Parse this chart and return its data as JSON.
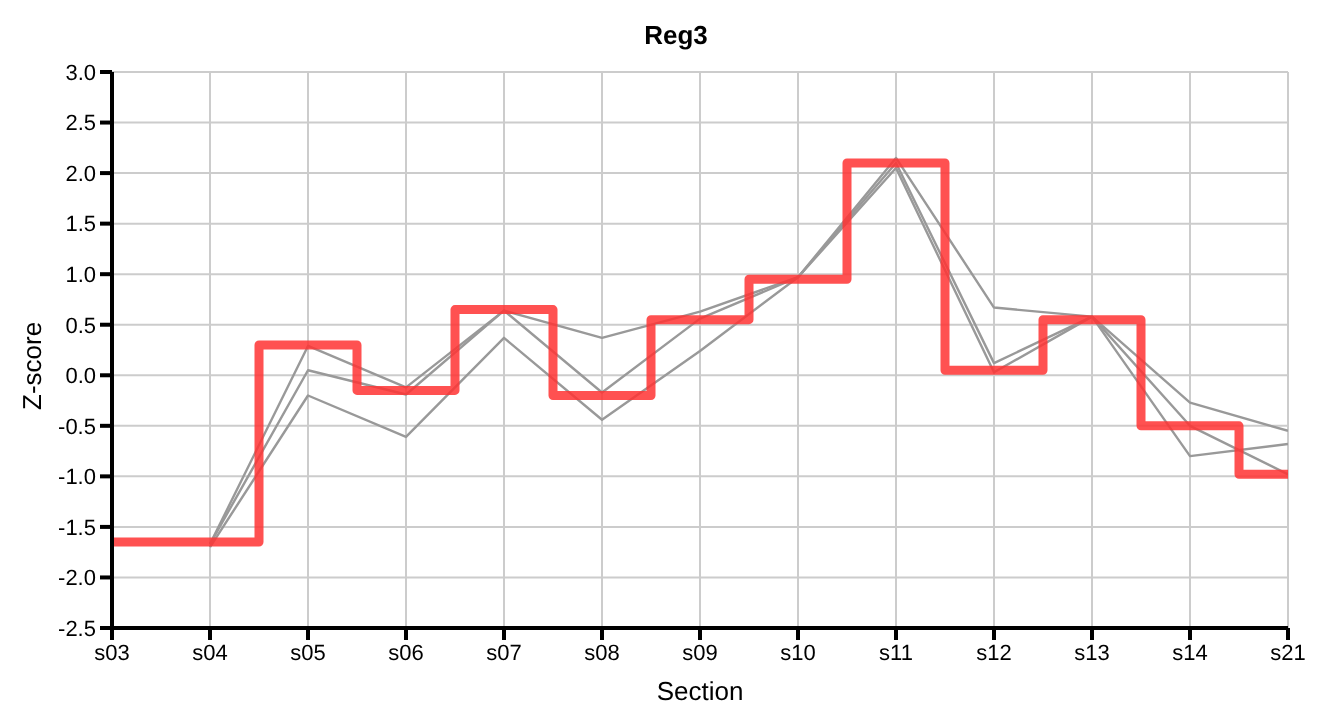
{
  "chart_data": {
    "type": "line",
    "title": "Reg3",
    "xlabel": "Section",
    "ylabel": "Z-score",
    "categories": [
      "s03",
      "s04",
      "s05",
      "s06",
      "s07",
      "s08",
      "s09",
      "s10",
      "s11",
      "s12",
      "s13",
      "s14",
      "s21"
    ],
    "series": [
      {
        "type": "line",
        "color": "#999999",
        "values": [
          null,
          -1.67,
          0.29,
          -0.12,
          0.64,
          -0.17,
          0.56,
          0.97,
          2.1,
          0.12,
          0.58,
          -0.5,
          -0.98
        ]
      },
      {
        "type": "line",
        "color": "#999999",
        "values": [
          null,
          -1.67,
          0.05,
          -0.19,
          0.64,
          0.37,
          0.63,
          0.97,
          2.15,
          0.67,
          0.58,
          -0.27,
          -0.55
        ]
      },
      {
        "type": "line",
        "color": "#999999",
        "values": [
          null,
          -1.7,
          -0.2,
          -0.61,
          0.37,
          -0.44,
          0.24,
          0.97,
          2.05,
          0.03,
          0.58,
          -0.8,
          -0.68
        ]
      },
      {
        "type": "step",
        "color": "#ff3333",
        "values": [
          -1.65,
          -1.65,
          0.3,
          -0.15,
          0.65,
          -0.2,
          0.55,
          0.95,
          2.1,
          0.05,
          0.55,
          -0.5,
          -0.98
        ]
      }
    ],
    "ylim": [
      -2.5,
      3.0
    ],
    "yticks": [
      -2.5,
      {
        "value": -2,
        "label": "-2.0"
      },
      -1.5,
      {
        "value": -1,
        "label": "-1.0"
      },
      -0.5,
      {
        "value": 0,
        "label": "0.0"
      },
      0.5,
      {
        "value": 1,
        "label": "1.0"
      },
      1.5,
      {
        "value": 2,
        "label": "2.0"
      },
      2.5,
      {
        "value": 3,
        "label": "3.0"
      }
    ],
    "grid": true,
    "legend": false,
    "marker": "none",
    "line_style": "solid"
  }
}
